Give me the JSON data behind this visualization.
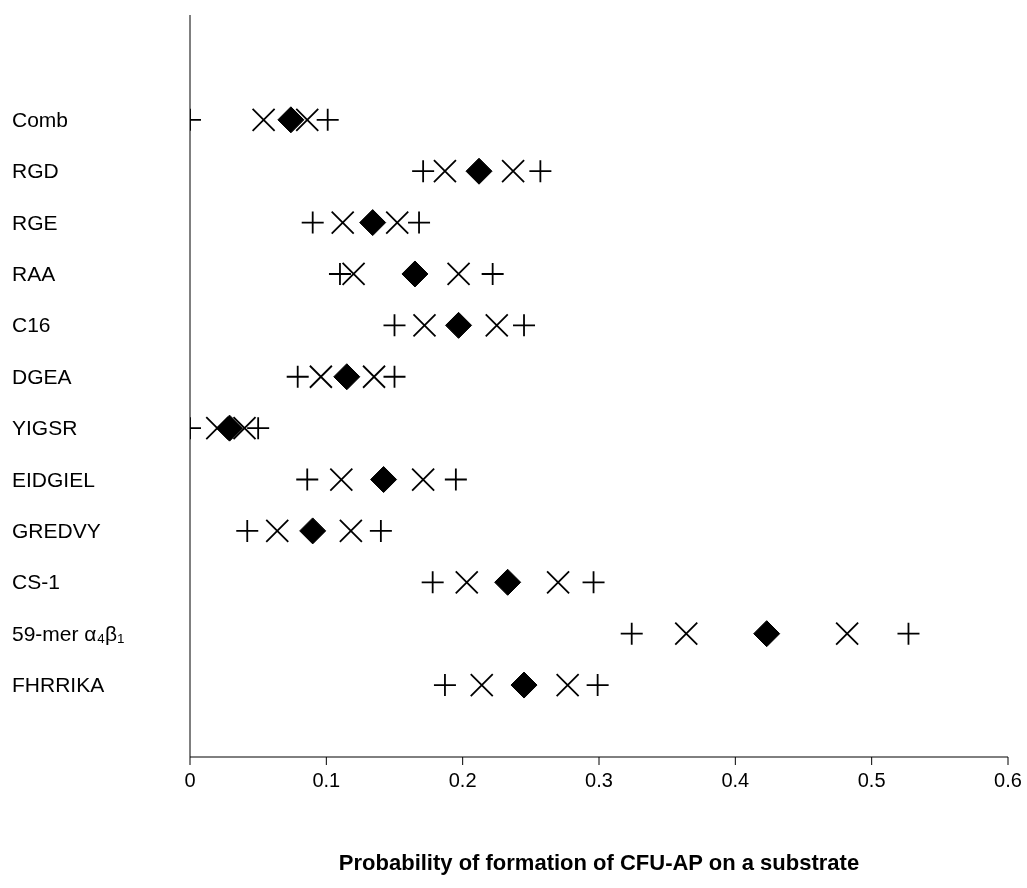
{
  "chart_data": {
    "type": "scatter",
    "orientation": "horizontal",
    "xlabel": "Probability of formation of CFU-AP on a substrate",
    "categories": [
      "Comb",
      "RGD",
      "RGE",
      "RAA",
      "C16",
      "DGEA",
      "YIGSR",
      "EIDGIEL",
      "GREDVY",
      "CS-1",
      "59-mer α₄β₁",
      "FHRRIKA"
    ],
    "xlim": [
      0,
      0.6
    ],
    "xticks": [
      0,
      0.1,
      0.2,
      0.3,
      0.4,
      0.5,
      0.6
    ],
    "grid": false,
    "legend": false,
    "series": [
      {
        "color": "#000000",
        "marker": "cross",
        "values": [
          0.0,
          0.171,
          0.09,
          0.11,
          0.15,
          0.079,
          0.0,
          0.086,
          0.042,
          0.178,
          0.324,
          0.187
        ]
      },
      {
        "color": "#000000",
        "marker": "x",
        "values": [
          0.054,
          0.187,
          0.112,
          0.12,
          0.172,
          0.096,
          0.02,
          0.111,
          0.064,
          0.203,
          0.364,
          0.214
        ]
      },
      {
        "color": "#000000",
        "marker": "diamond",
        "values": [
          0.074,
          0.212,
          0.134,
          0.165,
          0.197,
          0.115,
          0.029,
          0.142,
          0.09,
          0.233,
          0.423,
          0.245
        ]
      },
      {
        "color": "#000000",
        "marker": "x",
        "values": [
          0.086,
          0.237,
          0.152,
          0.197,
          0.225,
          0.135,
          0.04,
          0.171,
          0.118,
          0.27,
          0.482,
          0.277
        ]
      },
      {
        "color": "#000000",
        "marker": "cross",
        "values": [
          0.101,
          0.257,
          0.168,
          0.222,
          0.245,
          0.15,
          0.05,
          0.195,
          0.14,
          0.296,
          0.527,
          0.299
        ]
      }
    ]
  }
}
